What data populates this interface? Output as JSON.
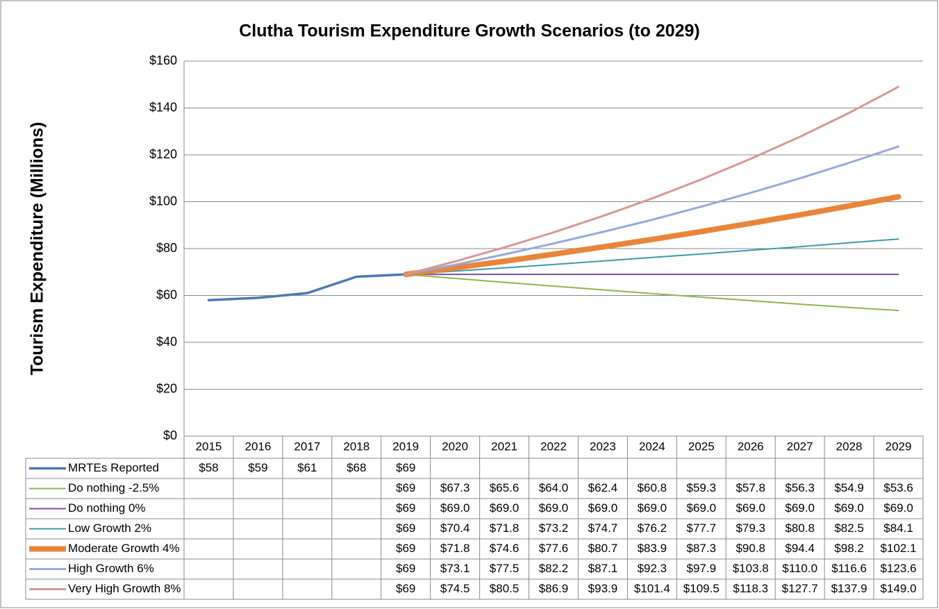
{
  "chart_data": {
    "type": "line",
    "title": "Clutha Tourism Expenditure Growth Scenarios (to 2029)",
    "y_label": "Tourism Expenditure (Millions)",
    "categories": [
      "2015",
      "2016",
      "2017",
      "2018",
      "2019",
      "2020",
      "2021",
      "2022",
      "2023",
      "2024",
      "2025",
      "2026",
      "2027",
      "2028",
      "2029"
    ],
    "ylim": [
      0,
      160
    ],
    "yticks": [
      {
        "value": 0,
        "label": "$0"
      },
      {
        "value": 20,
        "label": "$20"
      },
      {
        "value": 40,
        "label": "$40"
      },
      {
        "value": 60,
        "label": "$60"
      },
      {
        "value": 80,
        "label": "$80"
      },
      {
        "value": 100,
        "label": "$100"
      },
      {
        "value": 120,
        "label": "$120"
      },
      {
        "value": 140,
        "label": "$140"
      },
      {
        "value": 160,
        "label": "$160"
      }
    ],
    "grid": true,
    "series": [
      {
        "name": "MRTEs Reported",
        "color": "#4a78b3",
        "line_width": 3.5,
        "values": [
          58,
          59,
          61,
          68,
          69,
          null,
          null,
          null,
          null,
          null,
          null,
          null,
          null,
          null,
          null
        ],
        "value_labels": [
          "$58",
          "$59",
          "$61",
          "$68",
          "$69",
          null,
          null,
          null,
          null,
          null,
          null,
          null,
          null,
          null,
          null
        ]
      },
      {
        "name": "Do nothing -2.5%",
        "color": "#8db44f",
        "line_width": 2,
        "values": [
          null,
          null,
          null,
          null,
          69,
          67.3,
          65.6,
          64.0,
          62.4,
          60.8,
          59.3,
          57.8,
          56.3,
          54.9,
          53.6
        ],
        "value_labels": [
          null,
          null,
          null,
          null,
          "$69",
          "$67.3",
          "$65.6",
          "$64.0",
          "$62.4",
          "$60.8",
          "$59.3",
          "$57.8",
          "$56.3",
          "$54.9",
          "$53.6"
        ]
      },
      {
        "name": "Do nothing 0%",
        "color": "#7152a0",
        "line_width": 2,
        "values": [
          null,
          null,
          null,
          null,
          69,
          69.0,
          69.0,
          69.0,
          69.0,
          69.0,
          69.0,
          69.0,
          69.0,
          69.0,
          69.0
        ],
        "value_labels": [
          null,
          null,
          null,
          null,
          "$69",
          "$69.0",
          "$69.0",
          "$69.0",
          "$69.0",
          "$69.0",
          "$69.0",
          "$69.0",
          "$69.0",
          "$69.0",
          "$69.0"
        ]
      },
      {
        "name": "Low Growth 2%",
        "color": "#3b9aa8",
        "line_width": 2,
        "values": [
          null,
          null,
          null,
          null,
          69,
          70.4,
          71.8,
          73.2,
          74.7,
          76.2,
          77.7,
          79.3,
          80.8,
          82.5,
          84.1
        ],
        "value_labels": [
          null,
          null,
          null,
          null,
          "$69",
          "$70.4",
          "$71.8",
          "$73.2",
          "$74.7",
          "$76.2",
          "$77.7",
          "$79.3",
          "$80.8",
          "$82.5",
          "$84.1"
        ]
      },
      {
        "name": "Moderate Growth 4%",
        "color": "#e8853b",
        "line_width": 8,
        "values": [
          null,
          null,
          null,
          null,
          69,
          71.8,
          74.6,
          77.6,
          80.7,
          83.9,
          87.3,
          90.8,
          94.4,
          98.2,
          102.1
        ],
        "value_labels": [
          null,
          null,
          null,
          null,
          "$69",
          "$71.8",
          "$74.6",
          "$77.6",
          "$80.7",
          "$83.9",
          "$87.3",
          "$90.8",
          "$94.4",
          "$98.2",
          "$102.1"
        ]
      },
      {
        "name": "High Growth 6%",
        "color": "#94aad7",
        "line_width": 3,
        "values": [
          null,
          null,
          null,
          null,
          69,
          73.1,
          77.5,
          82.2,
          87.1,
          92.3,
          97.9,
          103.8,
          110.0,
          116.6,
          123.6
        ],
        "value_labels": [
          null,
          null,
          null,
          null,
          "$69",
          "$73.1",
          "$77.5",
          "$82.2",
          "$87.1",
          "$92.3",
          "$97.9",
          "$103.8",
          "$110.0",
          "$116.6",
          "$123.6"
        ]
      },
      {
        "name": "Very High Growth 8%",
        "color": "#d99694",
        "line_width": 3,
        "values": [
          null,
          null,
          null,
          null,
          69,
          74.5,
          80.5,
          86.9,
          93.9,
          101.4,
          109.5,
          118.3,
          127.7,
          137.9,
          149.0
        ],
        "value_labels": [
          null,
          null,
          null,
          null,
          "$69",
          "$74.5",
          "$80.5",
          "$86.9",
          "$93.9",
          "$101.4",
          "$109.5",
          "$118.3",
          "$127.7",
          "$137.9",
          "$149.0"
        ]
      }
    ]
  }
}
